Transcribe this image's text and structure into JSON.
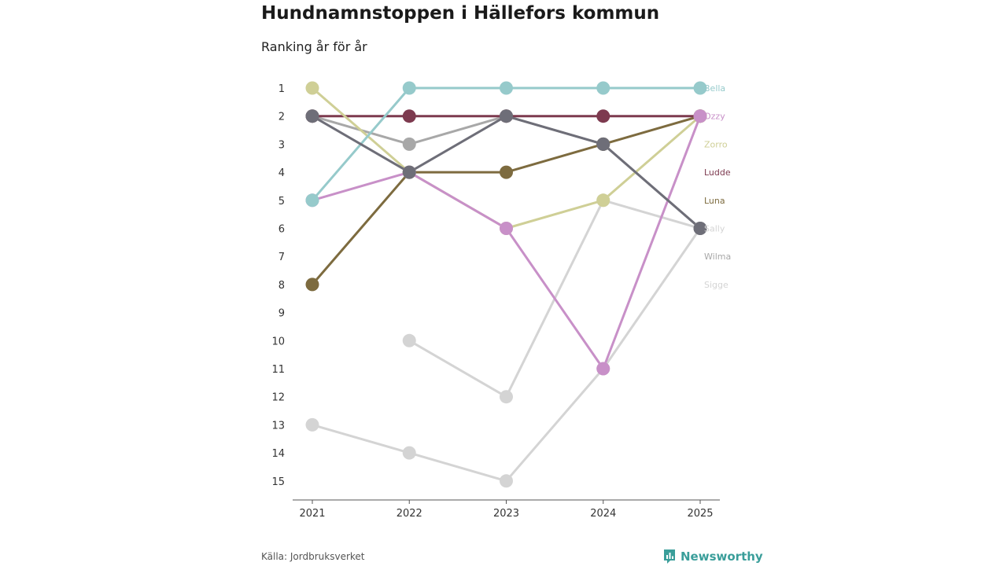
{
  "header": {
    "title": "Hundnamnstoppen i Hällefors kommun",
    "subtitle": "Ranking år för år"
  },
  "footer": {
    "source": "Källa: Jordbruksverket",
    "brand": "Newsworthy"
  },
  "colors": {
    "axis": "#555555",
    "tick_text": "#333333"
  },
  "chart_data": {
    "type": "line",
    "title": "Hundnamnstoppen i Hällefors kommun",
    "subtitle": "Ranking år för år",
    "xlabel": "",
    "ylabel": "",
    "x": [
      "2021",
      "2022",
      "2023",
      "2024",
      "2025"
    ],
    "y_ticks": [
      "1",
      "2",
      "3",
      "4",
      "5",
      "6",
      "7",
      "8",
      "9",
      "10",
      "11",
      "12",
      "13",
      "14",
      "15"
    ],
    "ylim": [
      1,
      15
    ],
    "y_inverted": true,
    "grid": false,
    "legend": "right end labels",
    "series": [
      {
        "name": "Sigge",
        "color": "#d4d4d4",
        "values": [
          13,
          14,
          15,
          11,
          6
        ]
      },
      {
        "name": "Sigge",
        "color": "#d4d4d4",
        "values": [
          null,
          10,
          12,
          5,
          6
        ]
      },
      {
        "name": "Wilma",
        "color": "#a8a8a8",
        "values": [
          2,
          3,
          2,
          3,
          6
        ]
      },
      {
        "name": "Luna",
        "color": "#7d6b3f",
        "values": [
          8,
          4,
          4,
          3,
          2
        ]
      },
      {
        "name": "Ludde",
        "color": "#7d3a4f",
        "values": [
          2,
          2,
          2,
          2,
          2
        ]
      },
      {
        "name": "Zorro",
        "color": "#cfcf96",
        "values": [
          1,
          4,
          6,
          5,
          2
        ]
      },
      {
        "name": "Ozzy",
        "color": "#c890c8",
        "values": [
          5,
          4,
          6,
          11,
          2
        ]
      },
      {
        "name": "Bella",
        "color": "#96cacb",
        "values": [
          5,
          1,
          1,
          1,
          1
        ]
      },
      {
        "name": "Sally",
        "color": "#6e6e78",
        "values": [
          2,
          4,
          2,
          3,
          6
        ]
      }
    ],
    "end_labels": [
      {
        "name": "Bella",
        "rank": 1,
        "color": "#96cacb"
      },
      {
        "name": "Ozzy",
        "rank": 2,
        "color": "#c890c8"
      },
      {
        "name": "Zorro",
        "rank": 3,
        "color": "#cfcf96"
      },
      {
        "name": "Ludde",
        "rank": 4,
        "color": "#7d3a4f"
      },
      {
        "name": "Luna",
        "rank": 5,
        "color": "#7d6b3f"
      },
      {
        "name": "Sally",
        "rank": 6,
        "color": "#d4d4d4"
      },
      {
        "name": "Wilma",
        "rank": 7,
        "color": "#a8a8a8"
      },
      {
        "name": "Sigge",
        "rank": 8,
        "color": "#d4d4d4"
      }
    ]
  }
}
